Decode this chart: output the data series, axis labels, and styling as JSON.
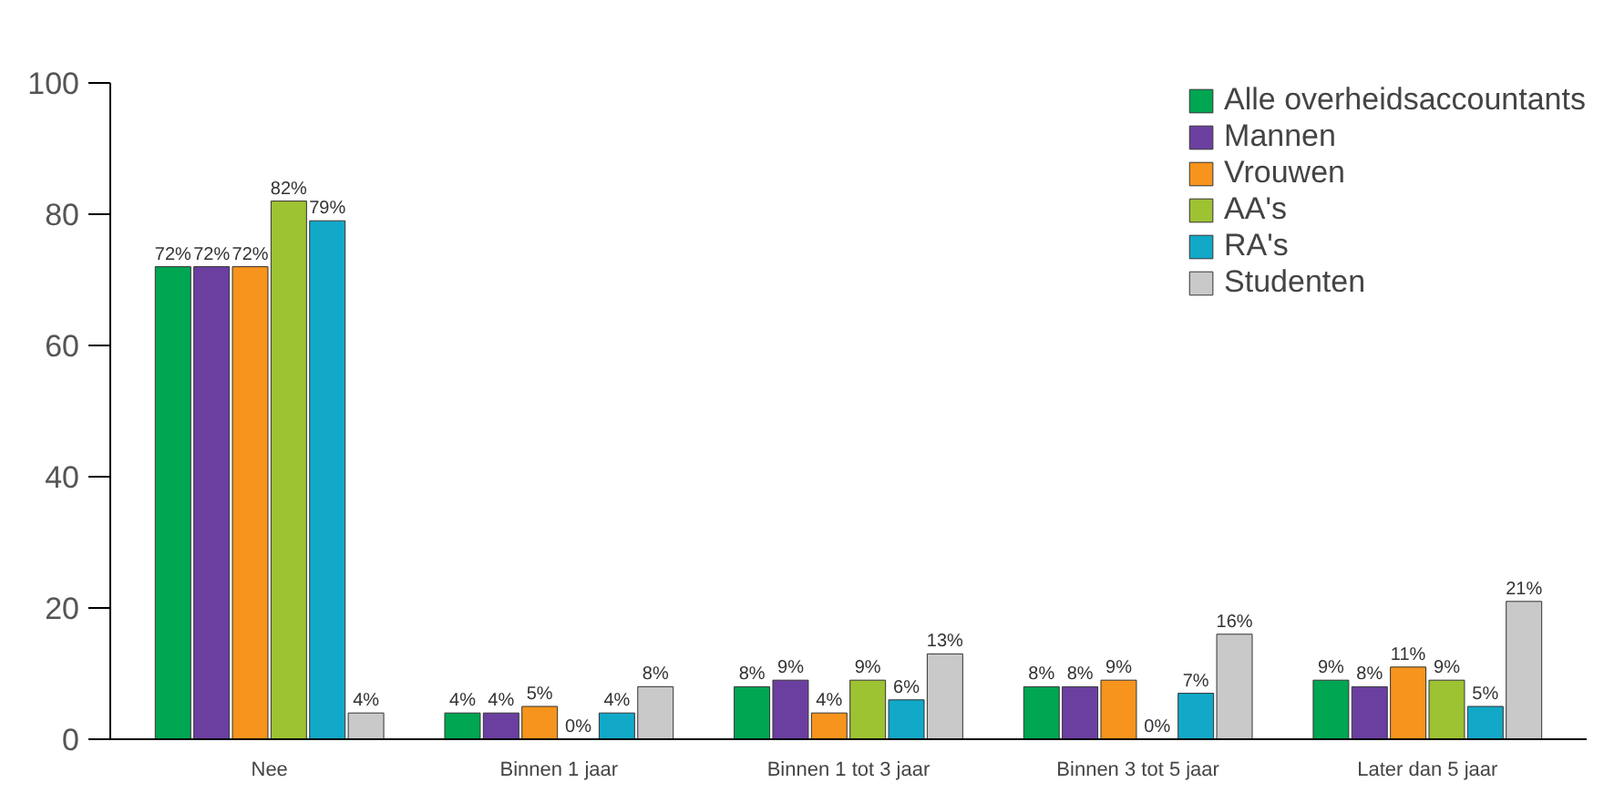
{
  "chart_data": {
    "type": "bar",
    "categories": [
      "Nee",
      "Binnen 1 jaar",
      "Binnen 1 tot 3 jaar",
      "Binnen 3 tot 5 jaar",
      "Later dan 5 jaar"
    ],
    "series": [
      {
        "name": "Alle overheidsaccountants",
        "color": "#00a651",
        "values": [
          72,
          4,
          8,
          8,
          9
        ],
        "value_labels": [
          "72%",
          "4%",
          "8%",
          "8%",
          "9%"
        ]
      },
      {
        "name": "Mannen",
        "color": "#6b3fa0",
        "values": [
          72,
          4,
          9,
          8,
          8
        ],
        "value_labels": [
          "72%",
          "4%",
          "9%",
          "8%",
          "8%"
        ]
      },
      {
        "name": "Vrouwen",
        "color": "#f7941d",
        "values": [
          72,
          5,
          4,
          9,
          11
        ],
        "value_labels": [
          "72%",
          "5%",
          "4%",
          "9%",
          "11%"
        ]
      },
      {
        "name": "AA's",
        "color": "#9dc232",
        "values": [
          82,
          0,
          9,
          0,
          9
        ],
        "value_labels": [
          "82%",
          "0%",
          "9%",
          "0%",
          "9%"
        ]
      },
      {
        "name": "RA's",
        "color": "#12a8c8",
        "values": [
          79,
          4,
          6,
          7,
          5
        ],
        "value_labels": [
          "79%",
          "4%",
          "6%",
          "7%",
          "5%"
        ]
      },
      {
        "name": "Studenten",
        "color": "#c9c9c9",
        "values": [
          4,
          8,
          13,
          16,
          21
        ],
        "value_labels": [
          "4%",
          "8%",
          "13%",
          "16%",
          "21%"
        ]
      }
    ],
    "ylim": [
      0,
      100
    ],
    "yticks": [
      0,
      20,
      40,
      60,
      80,
      100
    ],
    "grid": false,
    "legend": "top right"
  }
}
